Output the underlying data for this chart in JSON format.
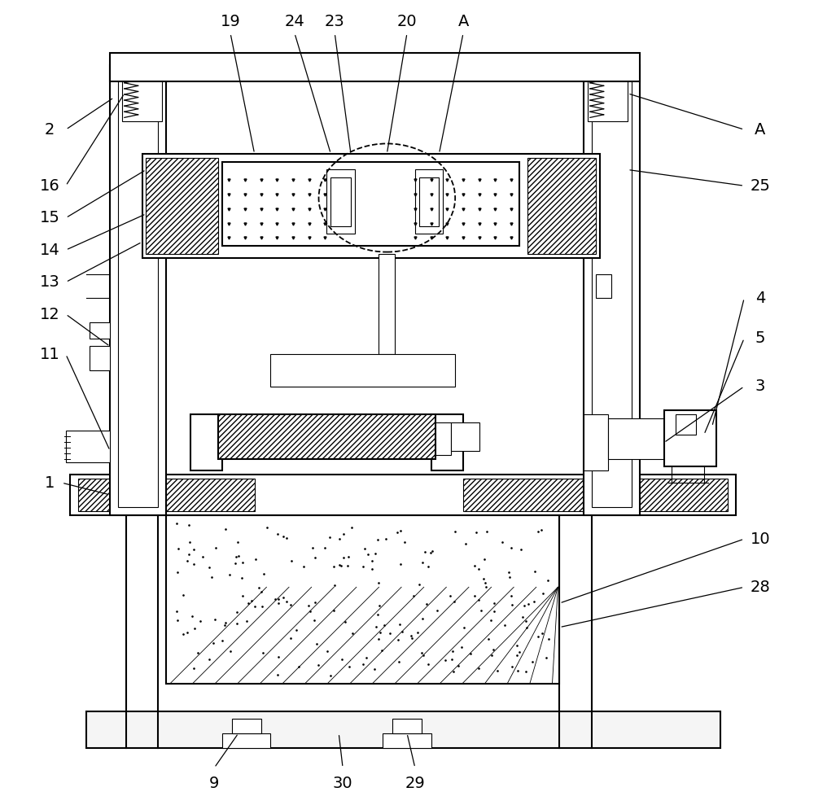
{
  "bg_color": "#ffffff",
  "line_color": "#000000",
  "fig_width": 10.0,
  "fig_height": 9.89,
  "lw_main": 1.5,
  "lw_thin": 0.8,
  "lw_med": 1.1
}
